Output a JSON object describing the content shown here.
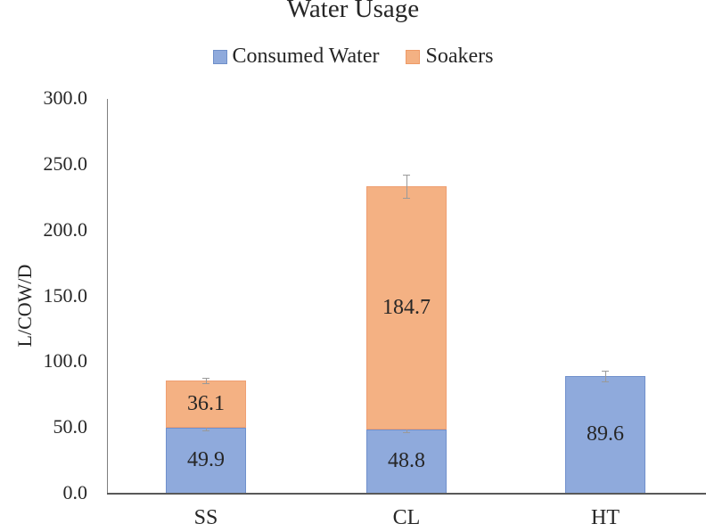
{
  "chart_data": {
    "type": "bar",
    "stacked": true,
    "title": "Water Usage",
    "xlabel": "",
    "ylabel": "L/COW/D",
    "ylim": [
      0,
      300
    ],
    "yticks": [
      "0.0",
      "50.0",
      "100.0",
      "150.0",
      "200.0",
      "250.0",
      "300.0"
    ],
    "grid": false,
    "legend_position": "top",
    "categories": [
      "SS",
      "CL",
      "HT"
    ],
    "series": [
      {
        "name": "Consumed Water",
        "color": "#8faadc",
        "values": [
          49.9,
          48.8,
          89.6
        ],
        "labels": [
          "49.9",
          "48.8",
          "89.6"
        ],
        "error": [
          2,
          2,
          4
        ]
      },
      {
        "name": "Soakers",
        "color": "#f4b183",
        "values": [
          36.1,
          184.7,
          null
        ],
        "labels": [
          "36.1",
          "184.7",
          ""
        ],
        "error": [
          2,
          9,
          null
        ]
      }
    ]
  },
  "legend": {
    "consumed": "Consumed Water",
    "soakers": "Soakers"
  }
}
